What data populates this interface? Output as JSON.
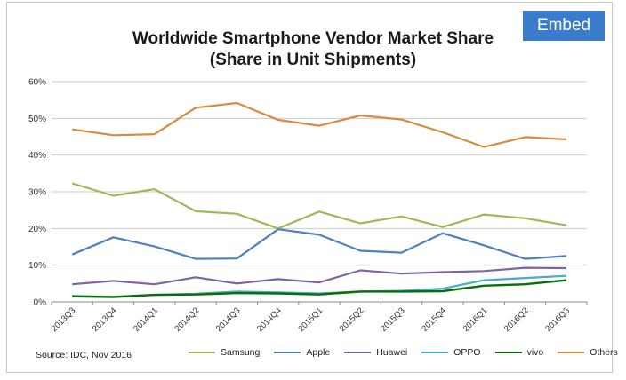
{
  "embed_label": "Embed",
  "source_text": "Source: IDC, Nov 2016",
  "chart_data": {
    "type": "line",
    "title": "Worldwide Smartphone Vendor Market Share",
    "subtitle": "(Share in Unit Shipments)",
    "xlabel": "",
    "ylabel": "",
    "ylim": [
      0,
      60
    ],
    "yticks": [
      "0%",
      "10%",
      "20%",
      "30%",
      "40%",
      "50%",
      "60%"
    ],
    "grid": true,
    "legend_position": "bottom",
    "categories": [
      "2013Q3",
      "2013Q4",
      "2014Q1",
      "2014Q2",
      "2014Q3",
      "2014Q4",
      "2015Q1",
      "2015Q2",
      "2015Q3",
      "2015Q4",
      "2016Q1",
      "2016Q2",
      "2016Q3"
    ],
    "series": [
      {
        "name": "Samsung",
        "color": "#9bbb59",
        "values": [
          32.3,
          28.9,
          30.7,
          24.7,
          24.0,
          20.0,
          24.6,
          21.4,
          23.3,
          20.4,
          23.8,
          22.8,
          20.9
        ]
      },
      {
        "name": "Apple",
        "color": "#4f81bd",
        "values": [
          12.9,
          17.6,
          15.1,
          11.7,
          11.8,
          19.8,
          18.3,
          13.9,
          13.4,
          18.7,
          15.4,
          11.7,
          12.5
        ]
      },
      {
        "name": "Huawei",
        "color": "#8064a2",
        "values": [
          4.8,
          5.7,
          4.8,
          6.7,
          5.0,
          6.2,
          5.3,
          8.6,
          7.7,
          8.1,
          8.4,
          9.3,
          9.2
        ]
      },
      {
        "name": "OPPO",
        "color": "#4bacc6",
        "values": [
          1.6,
          1.4,
          1.9,
          2.2,
          2.8,
          2.6,
          2.3,
          2.8,
          3.0,
          3.6,
          5.9,
          6.5,
          7.1
        ]
      },
      {
        "name": "vivo",
        "color": "#0a6e0a",
        "values": [
          1.5,
          1.3,
          1.9,
          2.0,
          2.4,
          2.3,
          2.0,
          2.8,
          2.8,
          2.9,
          4.4,
          4.8,
          5.9
        ]
      },
      {
        "name": "Others",
        "color": "#d98a3e",
        "values": [
          47.0,
          45.4,
          45.7,
          52.9,
          54.2,
          49.6,
          48.0,
          50.8,
          49.7,
          46.2,
          42.2,
          44.9,
          44.3
        ]
      }
    ]
  }
}
